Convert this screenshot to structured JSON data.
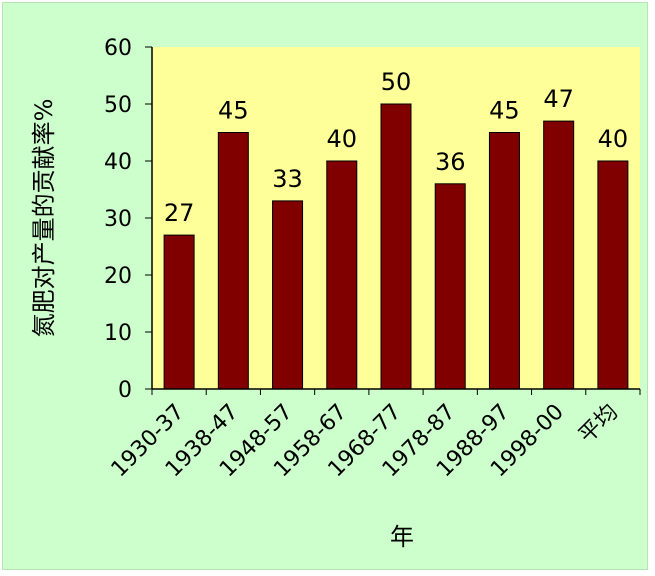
{
  "chart_data": {
    "type": "bar",
    "title": "",
    "xlabel": "年",
    "ylabel": "氮肥对产量的贡献率%",
    "categories": [
      "1930-37",
      "1938-47",
      "1948-57",
      "1958-67",
      "1968-77",
      "1978-87",
      "1988-97",
      "1998-00",
      "平均"
    ],
    "values": [
      27,
      45,
      33,
      40,
      50,
      36,
      45,
      47,
      40
    ],
    "data_labels": [
      "27",
      "45",
      "33",
      "40",
      "50",
      "36",
      "45",
      "47",
      "40"
    ],
    "ylim": [
      0,
      60
    ],
    "y_ticks": [
      0,
      10,
      20,
      30,
      40,
      50,
      60
    ],
    "y_tick_labels": [
      "0",
      "10",
      "20",
      "30",
      "40",
      "50",
      "60"
    ],
    "grid": false,
    "legend": "none",
    "colors": {
      "bar": "#800000",
      "plot_background": "#ffff99",
      "chart_background": "#ccffcc"
    }
  }
}
